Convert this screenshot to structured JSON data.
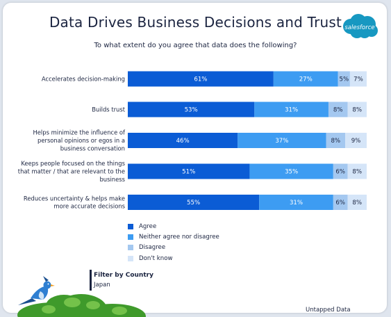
{
  "header": {
    "title": "Data Drives Business Decisions and Trust",
    "logo_text": "salesforce"
  },
  "chart_data": {
    "type": "bar",
    "orientation": "horizontal",
    "stacked": true,
    "title": "Data Drives Business Decisions and Trust",
    "subtitle": "To what extent do you agree that data does the following?",
    "categories": [
      [
        "Accelerates decision-making"
      ],
      [
        "Builds trust"
      ],
      [
        "Helps minimize the influence of",
        "personal opinions or egos in a",
        "business conversation"
      ],
      [
        "Keeps people focused on the things",
        "that matter / that are relevant to the",
        "business"
      ],
      [
        "Reduces uncertainty & helps make",
        "more accurate decisions"
      ]
    ],
    "series": [
      {
        "name": "Agree",
        "color": "#0b5cd5",
        "values": [
          61,
          53,
          46,
          51,
          55
        ]
      },
      {
        "name": "Neither agree nor disagree",
        "color": "#3d9cf2",
        "values": [
          27,
          31,
          37,
          35,
          31
        ]
      },
      {
        "name": "Disagree",
        "color": "#a4c8f0",
        "values": [
          5,
          8,
          8,
          6,
          6
        ]
      },
      {
        "name": "Don't know",
        "color": "#d5e5f8",
        "values": [
          7,
          8,
          9,
          8,
          8
        ]
      }
    ],
    "value_suffix": "%",
    "xlim": [
      0,
      100
    ],
    "grid": false,
    "legend_position": "bottom-left"
  },
  "filter": {
    "label": "Filter by Country",
    "value": "Japan"
  },
  "footer": {
    "source": "Untapped Data"
  },
  "colors": {
    "title": "#1b2440",
    "logo": "#1798c1"
  }
}
